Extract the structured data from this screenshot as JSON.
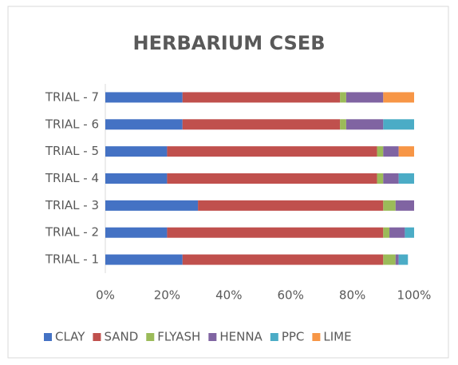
{
  "chart_data": {
    "type": "stacked_bar_horizontal",
    "title": "HERBARIUM CSEB",
    "categories": [
      "TRIAL - 1",
      "TRIAL - 2",
      "TRIAL - 3",
      "TRIAL - 4",
      "TRIAL - 5",
      "TRIAL - 6",
      "TRIAL - 7"
    ],
    "series": [
      {
        "name": "CLAY",
        "color": "#4472c4",
        "values": [
          25,
          20,
          30,
          20,
          20,
          25,
          25
        ]
      },
      {
        "name": "SAND",
        "color": "#c0504d",
        "values": [
          65,
          70,
          60,
          68,
          68,
          51,
          51
        ]
      },
      {
        "name": "FLYASH",
        "color": "#9bbb59",
        "values": [
          4,
          2,
          4,
          2,
          2,
          2,
          2
        ]
      },
      {
        "name": "HENNA",
        "color": "#8064a2",
        "values": [
          1,
          5,
          6,
          5,
          5,
          12,
          12
        ]
      },
      {
        "name": "PPC",
        "color": "#4bacc6",
        "values": [
          3,
          3,
          0,
          5,
          0,
          10,
          0
        ]
      },
      {
        "name": "LIME",
        "color": "#f79646",
        "values": [
          0,
          0,
          0,
          0,
          5,
          0,
          10
        ]
      }
    ],
    "xlim": [
      0,
      100
    ],
    "xticks": [
      {
        "value": 0,
        "label": "0%"
      },
      {
        "value": 20,
        "label": "20%"
      },
      {
        "value": 40,
        "label": "40%"
      },
      {
        "value": 60,
        "label": "60%"
      },
      {
        "value": 80,
        "label": "80%"
      },
      {
        "value": 100,
        "label": "100%"
      }
    ],
    "grid": false,
    "legend": "bottom"
  }
}
